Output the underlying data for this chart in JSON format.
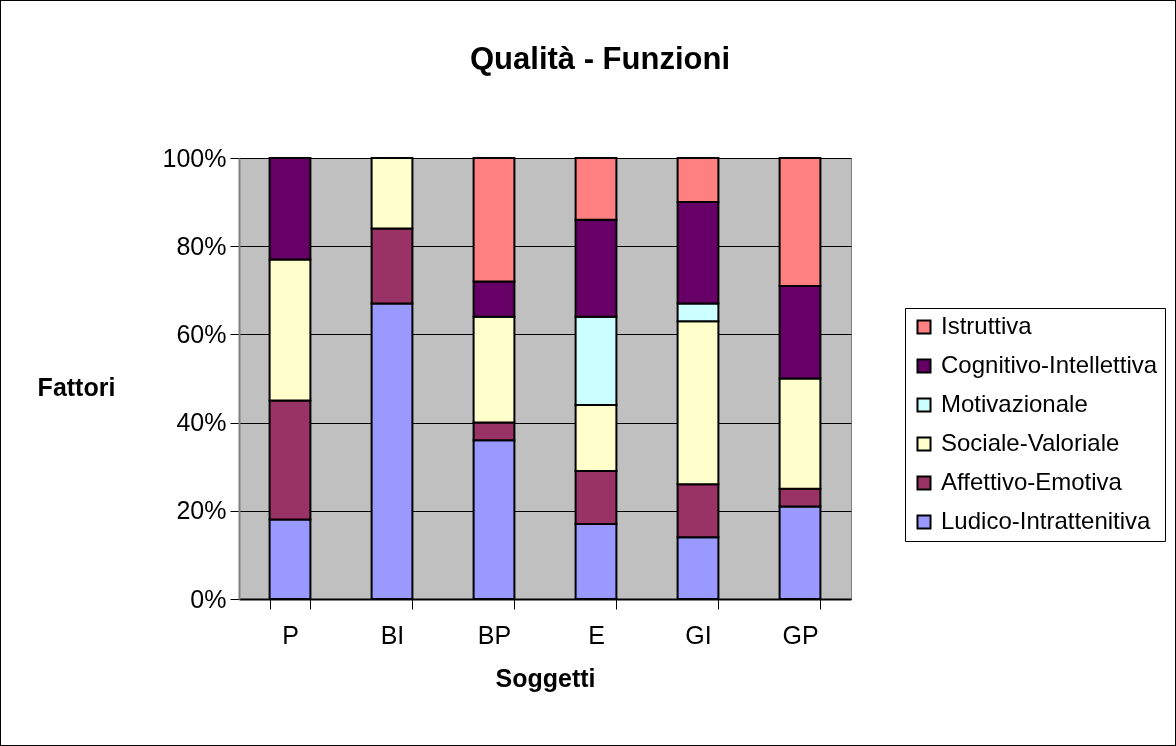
{
  "chart_data": {
    "type": "bar",
    "title": "Qualità - Funzioni",
    "xlabel": "Soggetti",
    "ylabel": "Fattori",
    "categories": [
      "P",
      "BI",
      "BP",
      "E",
      "GI",
      "GP"
    ],
    "stacked": true,
    "series": [
      {
        "name": "Ludico-Intrattenitiva",
        "color": "#9999ff",
        "values": [
          18,
          67,
          36,
          17,
          14,
          21
        ]
      },
      {
        "name": "Affettivo-Emotiva",
        "color": "#993366",
        "values": [
          27,
          17,
          4,
          12,
          12,
          4
        ]
      },
      {
        "name": "Sociale-Valoriale",
        "color": "#ffffcc",
        "values": [
          32,
          16,
          24,
          15,
          37,
          25
        ]
      },
      {
        "name": "Motivazionale",
        "color": "#ccffff",
        "values": [
          null,
          null,
          null,
          20,
          4,
          null
        ]
      },
      {
        "name": "Cognitivo-Intellettiva",
        "color": "#660066",
        "values": [
          23,
          null,
          8,
          22,
          23,
          21
        ]
      },
      {
        "name": "Istruttiva",
        "color": "#ff8080",
        "values": [
          null,
          null,
          28,
          14,
          10,
          29
        ]
      }
    ],
    "ylim": [
      0,
      100
    ],
    "yticks": [
      {
        "value": 0,
        "label": "0%"
      },
      {
        "value": 20,
        "label": "20%"
      },
      {
        "value": 40,
        "label": "40%"
      },
      {
        "value": 60,
        "label": "60%"
      },
      {
        "value": 80,
        "label": "80%"
      },
      {
        "value": 100,
        "label": "100%"
      }
    ],
    "grid": "y",
    "legend": "right"
  }
}
